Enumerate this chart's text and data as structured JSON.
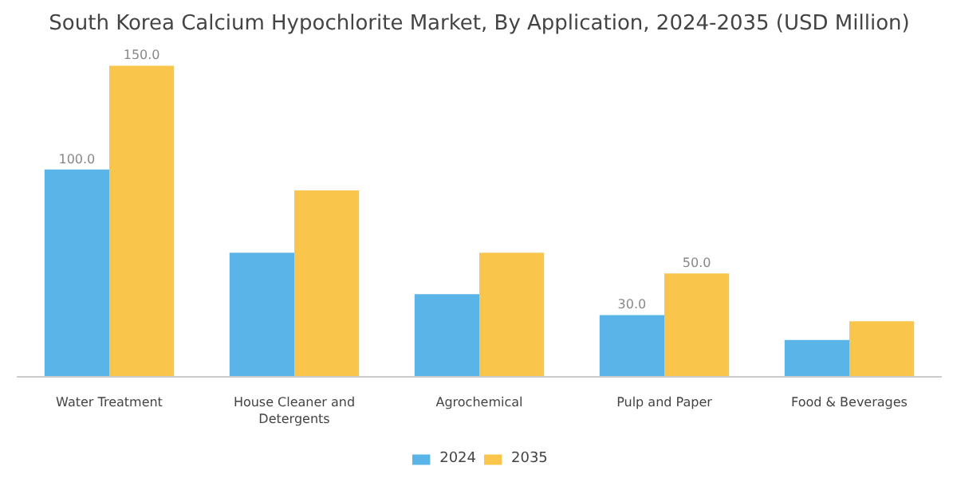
{
  "chart_data": {
    "type": "bar",
    "title": "South Korea Calcium Hypochlorite Market, By Application, 2024-2035 (USD Million)",
    "categories": [
      "Water Treatment",
      "House Cleaner and Detergents",
      "Agrochemical",
      "Pulp and Paper",
      "Food & Beverages"
    ],
    "series": [
      {
        "name": "2024",
        "color": "#5ab4e8",
        "values": [
          100,
          60,
          40,
          30,
          18
        ],
        "value_labels": [
          "100.0",
          null,
          null,
          "30.0",
          null
        ]
      },
      {
        "name": "2035",
        "color": "#f9c54a",
        "values": [
          150,
          90,
          60,
          50,
          27
        ],
        "value_labels": [
          "150.0",
          null,
          null,
          "50.0",
          null
        ]
      }
    ],
    "tick_labels": "x",
    "grid": false,
    "legend": "bottom"
  }
}
